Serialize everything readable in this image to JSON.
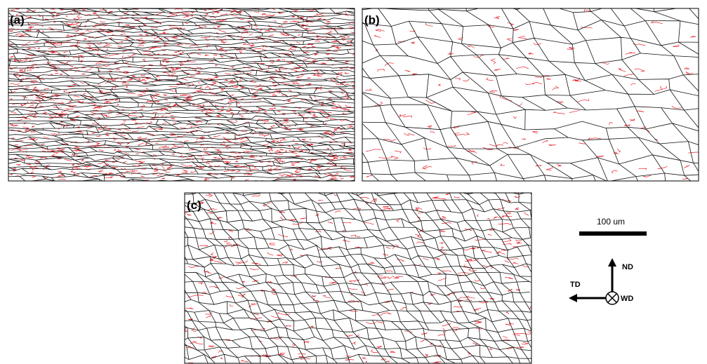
{
  "panels": [
    {
      "label": "(a)"
    },
    {
      "label": "(b)"
    },
    {
      "label": "(c)"
    }
  ],
  "scale_bar": {
    "label": "100 um"
  },
  "axes": {
    "up": "ND",
    "left": "TD",
    "out": "WD"
  }
}
